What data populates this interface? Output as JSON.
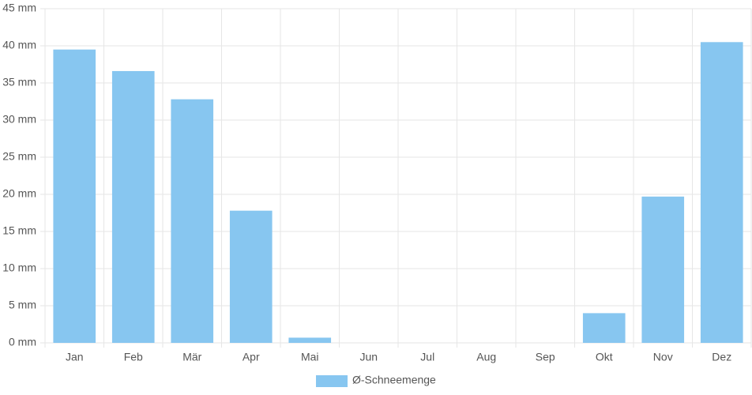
{
  "chart_data": {
    "type": "bar",
    "categories": [
      "Jan",
      "Feb",
      "Mär",
      "Apr",
      "Mai",
      "Jun",
      "Jul",
      "Aug",
      "Sep",
      "Okt",
      "Nov",
      "Dez"
    ],
    "series": [
      {
        "name": "Ø-Schneemenge",
        "color": "#87c6f0",
        "values": [
          39.5,
          36.6,
          32.8,
          17.8,
          0.7,
          0,
          0,
          0,
          0,
          4.0,
          19.7,
          40.5
        ]
      }
    ],
    "ylim": [
      0,
      45
    ],
    "yticks": [
      {
        "value": 0,
        "label": "0 mm"
      },
      {
        "value": 5,
        "label": "5 mm"
      },
      {
        "value": 10,
        "label": "10 mm"
      },
      {
        "value": 15,
        "label": "15 mm"
      },
      {
        "value": 20,
        "label": "20 mm"
      },
      {
        "value": 25,
        "label": "25 mm"
      },
      {
        "value": 30,
        "label": "30 mm"
      },
      {
        "value": 35,
        "label": "35 mm"
      },
      {
        "value": 40,
        "label": "40 mm"
      },
      {
        "value": 45,
        "label": "45 mm"
      }
    ],
    "grid": true,
    "legend": "bottom"
  }
}
